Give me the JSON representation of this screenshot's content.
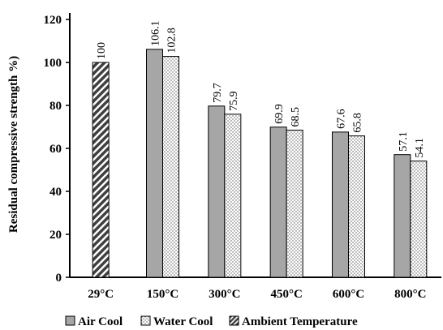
{
  "chart_data": {
    "type": "bar",
    "title": "",
    "xlabel": "",
    "ylabel": "Residual compressive strength %)",
    "ylim": [
      0,
      120
    ],
    "yticks": [
      0,
      20,
      40,
      60,
      80,
      100,
      120
    ],
    "grid": false,
    "legend_position": "bottom",
    "categories": [
      "29°C",
      "150°C",
      "300°C",
      "450°C",
      "600°C",
      "800°C"
    ],
    "series": [
      {
        "name": "Air Cool",
        "key": "air",
        "pattern": "solid-gray",
        "color": "#a6a6a6",
        "values": [
          null,
          106.1,
          79.7,
          69.9,
          67.6,
          57.1
        ],
        "labels": [
          "",
          "106.1",
          "79.7",
          "69.9",
          "67.6",
          "57.1"
        ]
      },
      {
        "name": "Water Cool",
        "key": "water",
        "pattern": "dots",
        "color": "#ffffff",
        "values": [
          null,
          102.8,
          75.9,
          68.5,
          65.8,
          54.1
        ],
        "labels": [
          "",
          "102.8",
          "75.9",
          "68.5",
          "65.8",
          "54.1"
        ]
      },
      {
        "name": "Ambient Temperature",
        "key": "ambient",
        "pattern": "diagonal-stripes",
        "color": "#404040",
        "values": [
          100,
          null,
          null,
          null,
          null,
          null
        ],
        "labels": [
          "100",
          "",
          "",
          "",
          "",
          ""
        ]
      }
    ]
  }
}
